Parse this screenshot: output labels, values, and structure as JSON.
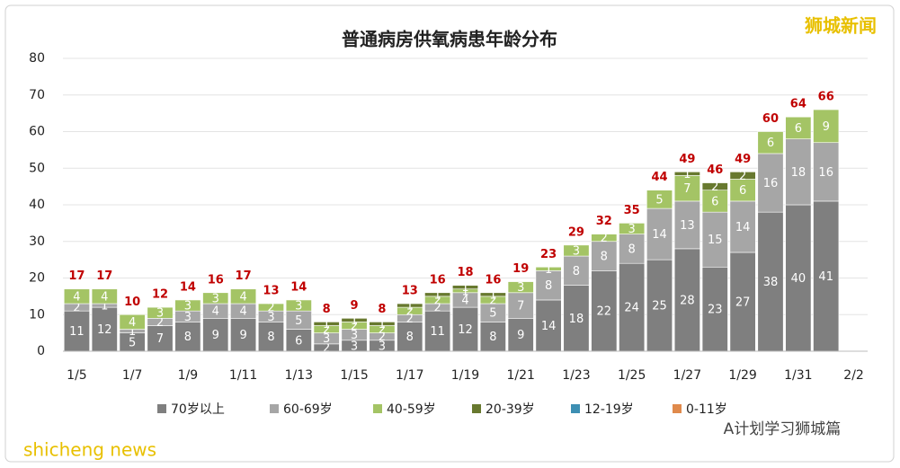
{
  "chart_data": {
    "type": "stacked_bar",
    "title": "普通病房供氧病患年龄分布",
    "categories": [
      "1/5",
      null,
      "1/7",
      null,
      "1/9",
      null,
      "1/11",
      null,
      "1/13",
      null,
      "1/15",
      null,
      "1/17",
      null,
      "1/19",
      null,
      "1/21",
      null,
      "1/23",
      null,
      "1/25",
      null,
      "1/27",
      null,
      "1/29",
      null,
      "1/31",
      null,
      "2/2"
    ],
    "series": [
      {
        "name": "70岁以上",
        "color": "#7f7f7f",
        "values": [
          11,
          12,
          5,
          7,
          8,
          9,
          9,
          8,
          6,
          2,
          3,
          3,
          8,
          11,
          12,
          8,
          9,
          14,
          18,
          22,
          24,
          25,
          28,
          23,
          27,
          38,
          40,
          41,
          null
        ]
      },
      {
        "name": "60-69岁",
        "color": "#a6a6a6",
        "values": [
          2,
          1,
          1,
          2,
          3,
          4,
          4,
          3,
          5,
          3,
          3,
          2,
          2,
          2,
          4,
          5,
          7,
          8,
          8,
          8,
          8,
          14,
          13,
          15,
          14,
          16,
          18,
          16,
          null
        ]
      },
      {
        "name": "40-59岁",
        "color": "#a4c465",
        "values": [
          4,
          4,
          4,
          3,
          3,
          3,
          4,
          2,
          3,
          2,
          2,
          2,
          2,
          2,
          1,
          2,
          3,
          1,
          3,
          2,
          3,
          5,
          7,
          6,
          6,
          6,
          6,
          9,
          null
        ]
      },
      {
        "name": "20-39岁",
        "color": "#68792f",
        "values": [
          0,
          0,
          0,
          0,
          0,
          0,
          0,
          0,
          0,
          1,
          1,
          1,
          1,
          1,
          1,
          1,
          0,
          0,
          0,
          0,
          0,
          0,
          1,
          2,
          2,
          0,
          0,
          0,
          null
        ]
      },
      {
        "name": "12-19岁",
        "color": "#3d8fb3",
        "values": [
          0,
          0,
          0,
          0,
          0,
          0,
          0,
          0,
          0,
          0,
          0,
          0,
          0,
          0,
          0,
          0,
          0,
          0,
          0,
          0,
          0,
          0,
          0,
          0,
          0,
          0,
          0,
          0,
          null
        ]
      },
      {
        "name": "0-11岁",
        "color": "#e08a4c",
        "values": [
          0,
          0,
          0,
          0,
          0,
          0,
          0,
          0,
          0,
          0,
          0,
          0,
          0,
          0,
          0,
          0,
          0,
          0,
          0,
          0,
          0,
          0,
          0,
          0,
          0,
          0,
          0,
          0,
          null
        ]
      }
    ],
    "totals": [
      17,
      17,
      10,
      12,
      14,
      16,
      17,
      13,
      14,
      8,
      9,
      8,
      13,
      16,
      18,
      16,
      19,
      23,
      29,
      32,
      35,
      44,
      49,
      46,
      49,
      60,
      64,
      66,
      null
    ],
    "total_color": "#c00000",
    "ylim": [
      0,
      80
    ],
    "yticks": [
      0,
      10,
      20,
      30,
      40,
      50,
      60,
      70,
      80
    ],
    "grid": true,
    "legend": "bottom",
    "annotations": [
      "狮城新闻",
      "A计划学习狮城篇",
      "shicheng news"
    ]
  }
}
